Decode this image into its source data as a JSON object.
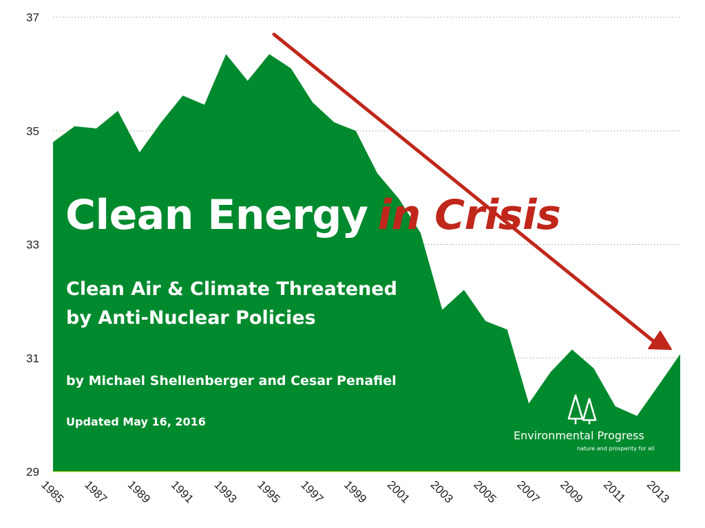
{
  "chart_data": {
    "type": "area",
    "x": [
      1985,
      1986,
      1987,
      1988,
      1989,
      1990,
      1991,
      1992,
      1993,
      1994,
      1995,
      1996,
      1997,
      1998,
      1999,
      2000,
      2001,
      2002,
      2003,
      2004,
      2005,
      2006,
      2007,
      2008,
      2009,
      2010,
      2011,
      2012,
      2013,
      2014
    ],
    "values": [
      34.8,
      35.08,
      35.04,
      35.35,
      34.62,
      35.15,
      35.62,
      35.46,
      36.35,
      35.88,
      36.35,
      36.1,
      35.5,
      35.15,
      35.0,
      34.25,
      33.8,
      33.2,
      31.85,
      32.2,
      31.65,
      31.5,
      30.2,
      30.75,
      31.15,
      30.82,
      30.15,
      29.98,
      30.52,
      31.07
    ],
    "xticks": [
      "1985",
      "1987",
      "1989",
      "1991",
      "1993",
      "1995",
      "1997",
      "1999",
      "2001",
      "2003",
      "2005",
      "2007",
      "2009",
      "2011",
      "2013"
    ],
    "yticks": [
      "29",
      "31",
      "33",
      "35",
      "37"
    ],
    "ylim": [
      29,
      37
    ],
    "xlim": [
      1985,
      2014
    ],
    "grid": true,
    "fill_color": "#008a2e",
    "trend_arrow_color": "#c0271a"
  },
  "title": {
    "main": "Clean Energy",
    "accent": "in Crisis",
    "accent_color": "#c0271a"
  },
  "subtitle": {
    "line1": "Clean Air & Climate Threatened",
    "line2": "by Anti-Nuclear Policies"
  },
  "byline": "by Michael Shellenberger and Cesar Penafiel",
  "updated": "Updated May 16, 2016",
  "logo": {
    "icon": "trees-icon",
    "name": "Environmental Progress",
    "tagline": "nature and prosperity for all"
  }
}
